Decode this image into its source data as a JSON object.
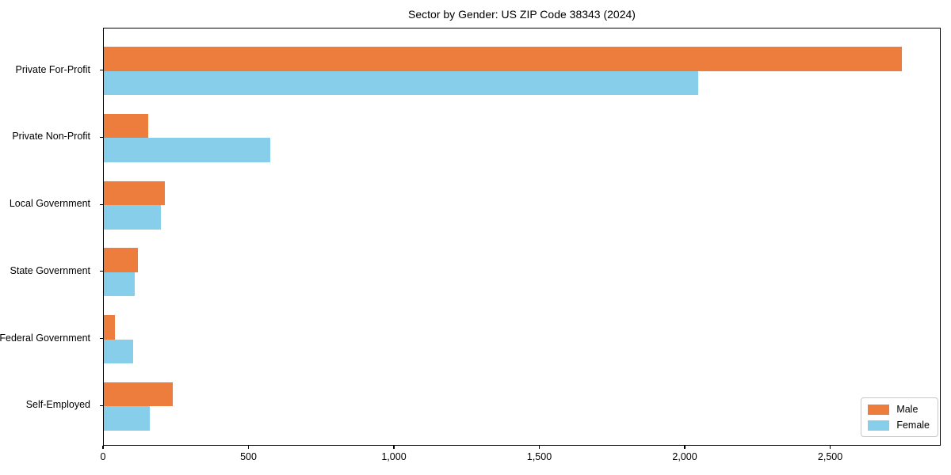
{
  "chart_data": {
    "type": "bar",
    "orientation": "horizontal",
    "title": "Sector by Gender: US ZIP Code 38343 (2024)",
    "categories": [
      "Private For-Profit",
      "Private Non-Profit",
      "Local Government",
      "State Government",
      "Federal Government",
      "Self-Employed"
    ],
    "series": [
      {
        "name": "Male",
        "color": "#ED7D3C",
        "values": [
          2743,
          153,
          211,
          118,
          38,
          238
        ]
      },
      {
        "name": "Female",
        "color": "#87CEEB",
        "values": [
          2044,
          572,
          197,
          106,
          100,
          157
        ]
      }
    ],
    "x_ticks": [
      {
        "value": 0,
        "label": "0"
      },
      {
        "value": 500,
        "label": "500"
      },
      {
        "value": 1000,
        "label": "1,000"
      },
      {
        "value": 1500,
        "label": "1,500"
      },
      {
        "value": 2000,
        "label": "2,000"
      },
      {
        "value": 2500,
        "label": "2,500"
      }
    ],
    "xlim": [
      0,
      2880
    ],
    "grid": false,
    "legend": {
      "position": "lower right",
      "entries": [
        "Male",
        "Female"
      ]
    }
  }
}
